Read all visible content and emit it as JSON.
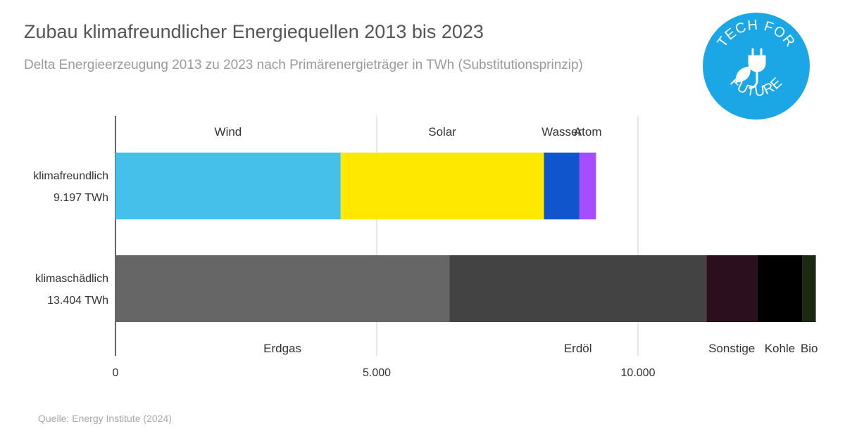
{
  "title": "Zubau klimafreundlicher Energiequellen 2013 bis 2023",
  "subtitle": "Delta Energieerzeugung 2013 zu 2023 nach Primärenergieträger in TWh (Substitutionsprinzip)",
  "source": "Quelle: Energy Institute (2024)",
  "logo": {
    "text_top": "TECH FOR",
    "text_bottom": "FUTURE",
    "color": "#1ba6e6",
    "icon": "plug-leaf-icon"
  },
  "chart_data": {
    "type": "bar",
    "orientation": "horizontal",
    "stacked": true,
    "categories": [
      {
        "label": "klimafreundlich",
        "total": "9.197  TWh"
      },
      {
        "label": "klimaschädlich",
        "total": "13.404  TWh"
      }
    ],
    "series": [
      {
        "name": "Wind",
        "category": 0,
        "value": 4310,
        "color": "#45c0eb"
      },
      {
        "name": "Solar",
        "category": 0,
        "value": 3890,
        "color": "#ffe800"
      },
      {
        "name": "Wasser",
        "category": 0,
        "value": 680,
        "color": "#1155cc"
      },
      {
        "name": "Atom",
        "category": 0,
        "value": 317,
        "color": "#a64dff"
      },
      {
        "name": "Erdgas",
        "category": 1,
        "value": 6390,
        "color": "#666666"
      },
      {
        "name": "Erdöl",
        "category": 1,
        "value": 4920,
        "color": "#434343"
      },
      {
        "name": "Sonstige",
        "category": 1,
        "value": 970,
        "color": "#2b0f1f"
      },
      {
        "name": "Kohle",
        "category": 1,
        "value": 870,
        "color": "#000000"
      },
      {
        "name": "Bio",
        "category": 1,
        "value": 254,
        "color": "#1a2a10"
      }
    ],
    "xlim": [
      0,
      14000
    ],
    "xticks": [
      {
        "value": 0,
        "label": "0"
      },
      {
        "value": 5000,
        "label": "5.000"
      },
      {
        "value": 10000,
        "label": "10.000"
      }
    ],
    "grid": true,
    "segment_labels": "above first bar, below second bar"
  }
}
